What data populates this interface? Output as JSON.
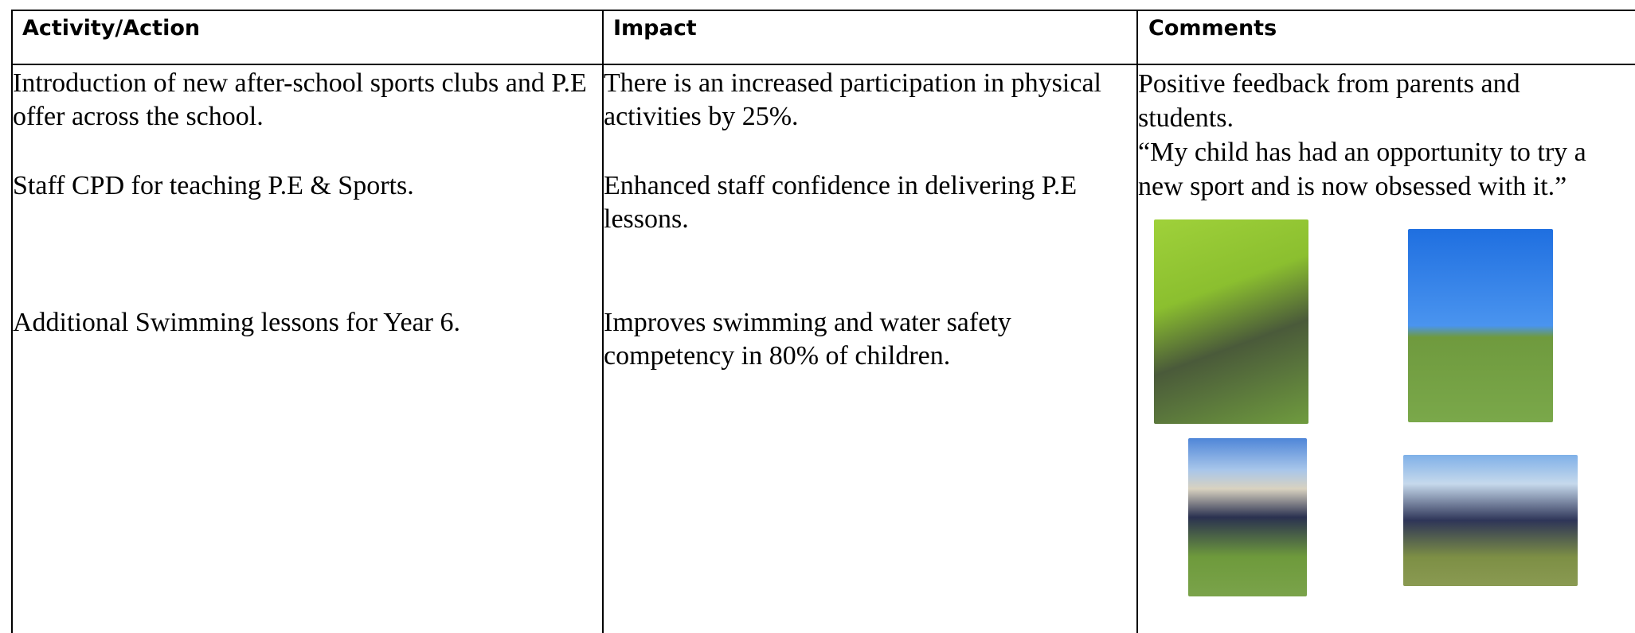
{
  "table": {
    "headers": [
      "Activity/Action",
      "Impact",
      "Comments"
    ],
    "rows": [
      [
        "Introduction of new after-school sports clubs and P.E offer across the school.",
        "There is an increased participation in physical activities by 25%."
      ],
      [
        "Staff CPD for teaching P.E & Sports.",
        "Enhanced staff confidence in delivering P.E lessons."
      ],
      [
        "Additional Swimming lessons for Year 6.",
        "Improves swimming and water safety competency in 80% of children."
      ]
    ],
    "comments": [
      "Positive feedback from parents and students.",
      "“My child has had an opportunity to try a new sport and is now obsessed with it.”"
    ]
  }
}
